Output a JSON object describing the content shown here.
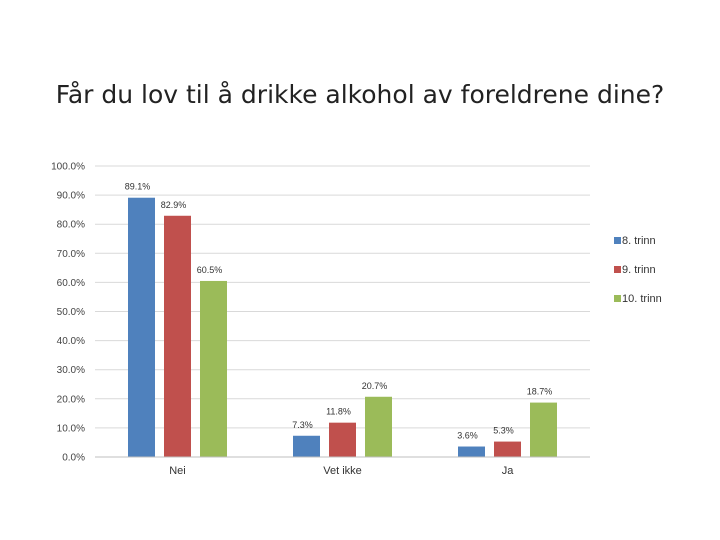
{
  "chart_data": {
    "type": "bar",
    "title": "Får du lov til å drikke alkohol av foreldrene dine?",
    "categories": [
      "Nei",
      "Vet ikke",
      "Ja"
    ],
    "series": [
      {
        "name": "8. trinn",
        "color": "#4f81bd",
        "values": [
          89.1,
          7.3,
          3.6
        ],
        "labels": [
          "89.1%",
          "7.3%",
          "3.6%"
        ]
      },
      {
        "name": "9. trinn",
        "color": "#c0504d",
        "values": [
          82.9,
          11.8,
          5.3
        ],
        "labels": [
          "82.9%",
          "11.8%",
          "5.3%"
        ]
      },
      {
        "name": "10. trinn",
        "color": "#9bbb59",
        "values": [
          60.5,
          20.7,
          18.7
        ],
        "labels": [
          "60.5%",
          "20.7%",
          "18.7%"
        ]
      }
    ],
    "ylim": [
      0,
      100
    ],
    "yticks": [
      "0.0%",
      "10.0%",
      "20.0%",
      "30.0%",
      "40.0%",
      "50.0%",
      "60.0%",
      "70.0%",
      "80.0%",
      "90.0%",
      "100.0%"
    ],
    "grid": true,
    "legend_position": "right"
  }
}
